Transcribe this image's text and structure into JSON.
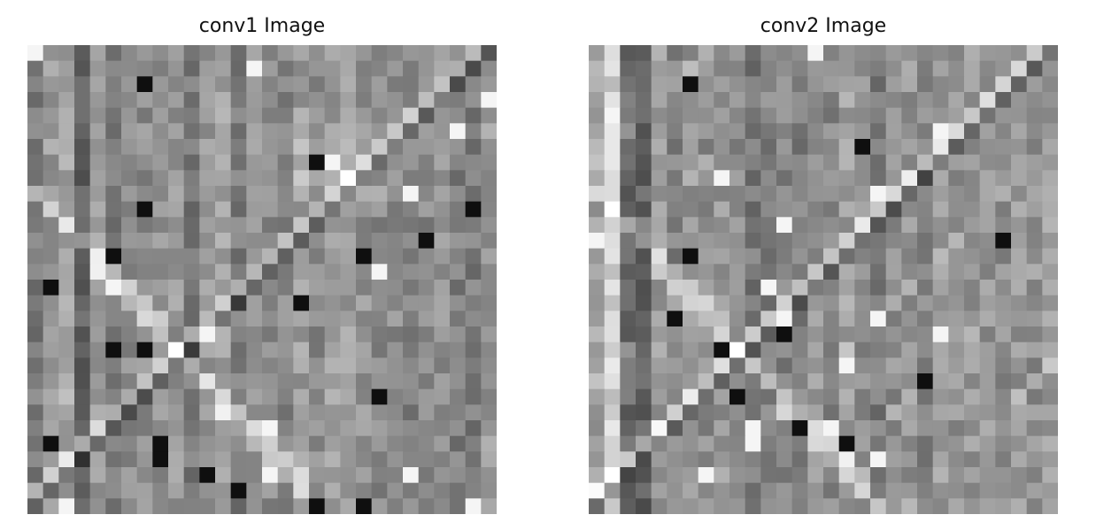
{
  "figures": [
    {
      "title": "conv1 Image"
    },
    {
      "title": "conv2 Image"
    }
  ]
}
